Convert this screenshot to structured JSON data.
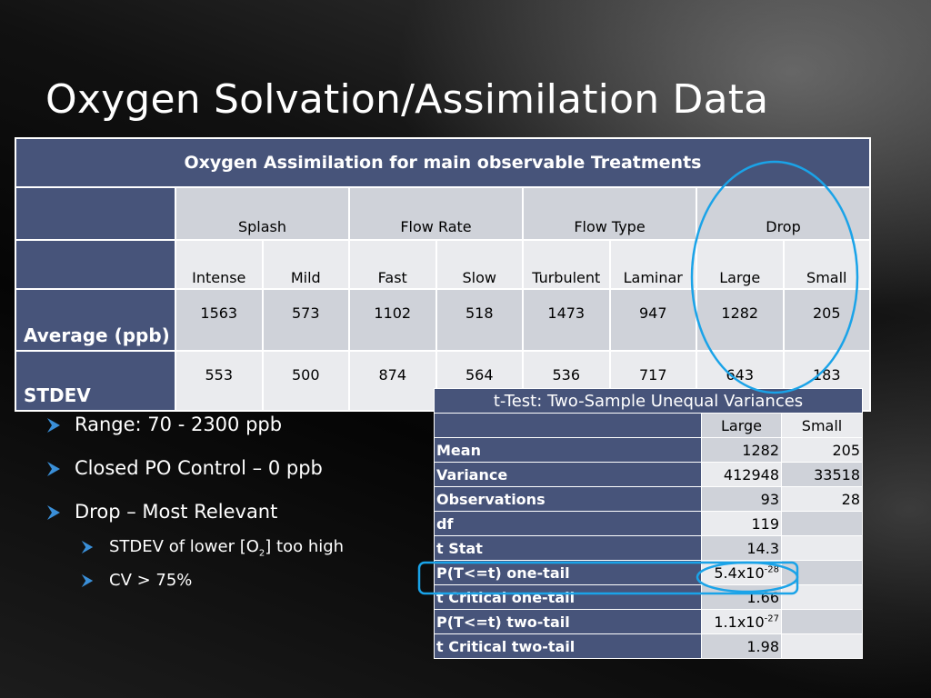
{
  "slide": {
    "title": "Oxygen Solvation/Assimilation Data"
  },
  "main_table": {
    "caption": "Oxygen Assimilation for main observable Treatments",
    "groups": [
      "Splash",
      "Flow Rate",
      "Flow Type",
      "Drop"
    ],
    "subheaders": [
      "Intense",
      "Mild",
      "Fast",
      "Slow",
      "Turbulent",
      "Laminar",
      "Large",
      "Small"
    ],
    "rows": [
      {
        "label": "Average (ppb)",
        "values": [
          "1563",
          "573",
          "1102",
          "518",
          "1473",
          "947",
          "1282",
          "205"
        ]
      },
      {
        "label": "STDEV",
        "values": [
          "553",
          "500",
          "874",
          "564",
          "536",
          "717",
          "643",
          "183"
        ]
      }
    ]
  },
  "ttest": {
    "title": "t-Test: Two-Sample Unequal Variances",
    "col_headers": [
      "Large",
      "Small"
    ],
    "rows": [
      {
        "label": "Mean",
        "large": "1282",
        "small": "205"
      },
      {
        "label": "Variance",
        "large": "412948",
        "small": "33518"
      },
      {
        "label": "Observations",
        "large": "93",
        "small": "28"
      },
      {
        "label": "df",
        "large": "119",
        "small": ""
      },
      {
        "label": "t Stat",
        "large": "14.3",
        "small": ""
      },
      {
        "label": "P(T<=t) one-tail",
        "large_base": "5.4x10",
        "large_exp": "-28",
        "small": ""
      },
      {
        "label": "t Critical one-tail",
        "large": "1.66",
        "small": ""
      },
      {
        "label": "P(T<=t) two-tail",
        "large_base": "1.1x10",
        "large_exp": "-27",
        "small": ""
      },
      {
        "label": "t Critical two-tail",
        "large": "1.98",
        "small": ""
      }
    ]
  },
  "bullets": {
    "items": [
      {
        "text": "Range: 70 - 2300 ppb"
      },
      {
        "text": "Closed PO Control – 0 ppb"
      },
      {
        "text": "Drop – Most Relevant"
      }
    ],
    "subitems": [
      {
        "pre": "STDEV of lower [O",
        "sub": "2",
        "post": "] too high"
      },
      {
        "text": "CV > 75%"
      }
    ]
  },
  "colors": {
    "header_fill": "#47547a",
    "cell_dark": "#cfd2d9",
    "cell_light": "#eaebee",
    "highlight": "#1aa3e8",
    "bullet_arrow": "#3a8fd8"
  },
  "icons": {
    "bullet": "arrowhead-bullet-icon"
  }
}
